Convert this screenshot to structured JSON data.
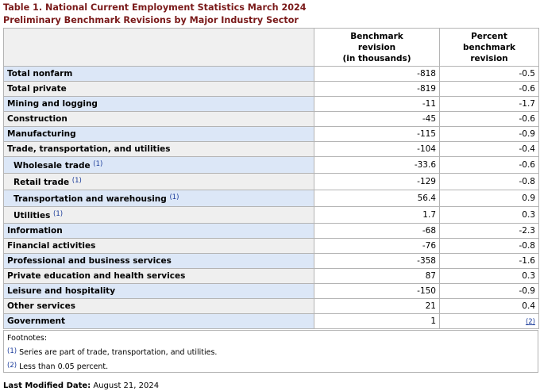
{
  "caption": {
    "line1": "Table 1. National Current Employment Statistics March 2024",
    "line2": "Preliminary Benchmark Revisions by Major Industry Sector"
  },
  "headers": {
    "col1": [
      "Benchmark",
      "revision",
      "(in thousands)"
    ],
    "col2": [
      "Percent",
      "benchmark",
      "revision"
    ]
  },
  "rows": [
    {
      "label": "Total nonfarm",
      "rev": "-818",
      "pct": "-0.5"
    },
    {
      "label": "Total private",
      "rev": "-819",
      "pct": "-0.6"
    },
    {
      "label": "Mining and logging",
      "rev": "-11",
      "pct": "-1.7"
    },
    {
      "label": "Construction",
      "rev": "-45",
      "pct": "-0.6"
    },
    {
      "label": "Manufacturing",
      "rev": "-115",
      "pct": "-0.9"
    },
    {
      "label": "Trade, transportation, and utilities",
      "rev": "-104",
      "pct": "-0.4"
    },
    {
      "label": "Wholesale trade",
      "note": "(1)",
      "rev": "-33.6",
      "pct": "-0.6"
    },
    {
      "label": "Retail trade",
      "note": "(1)",
      "rev": "-129",
      "pct": "-0.8"
    },
    {
      "label": "Transportation and warehousing",
      "note": "(1)",
      "rev": "56.4",
      "pct": "0.9"
    },
    {
      "label": "Utilities",
      "note": "(1)",
      "rev": "1.7",
      "pct": "0.3"
    },
    {
      "label": "Information",
      "rev": "-68",
      "pct": "-2.3"
    },
    {
      "label": "Financial activities",
      "rev": "-76",
      "pct": "-0.8"
    },
    {
      "label": "Professional and business services",
      "rev": "-358",
      "pct": "-1.6"
    },
    {
      "label": "Private education and health services",
      "rev": "87",
      "pct": "0.3"
    },
    {
      "label": "Leisure and hospitality",
      "rev": "-150",
      "pct": "-0.9"
    },
    {
      "label": "Other services",
      "rev": "21",
      "pct": "0.4"
    },
    {
      "label": "Government",
      "rev": "1",
      "pct_link": "(2)"
    }
  ],
  "footnotes": {
    "title": "Footnotes:",
    "items": [
      {
        "mark": "(1)",
        "text": "Series are part of trade, transportation, and utilities."
      },
      {
        "mark": "(2)",
        "text": "Less than 0.05 percent."
      }
    ]
  },
  "modified": {
    "label": "Last Modified Date:",
    "date": "August 21, 2024"
  }
}
